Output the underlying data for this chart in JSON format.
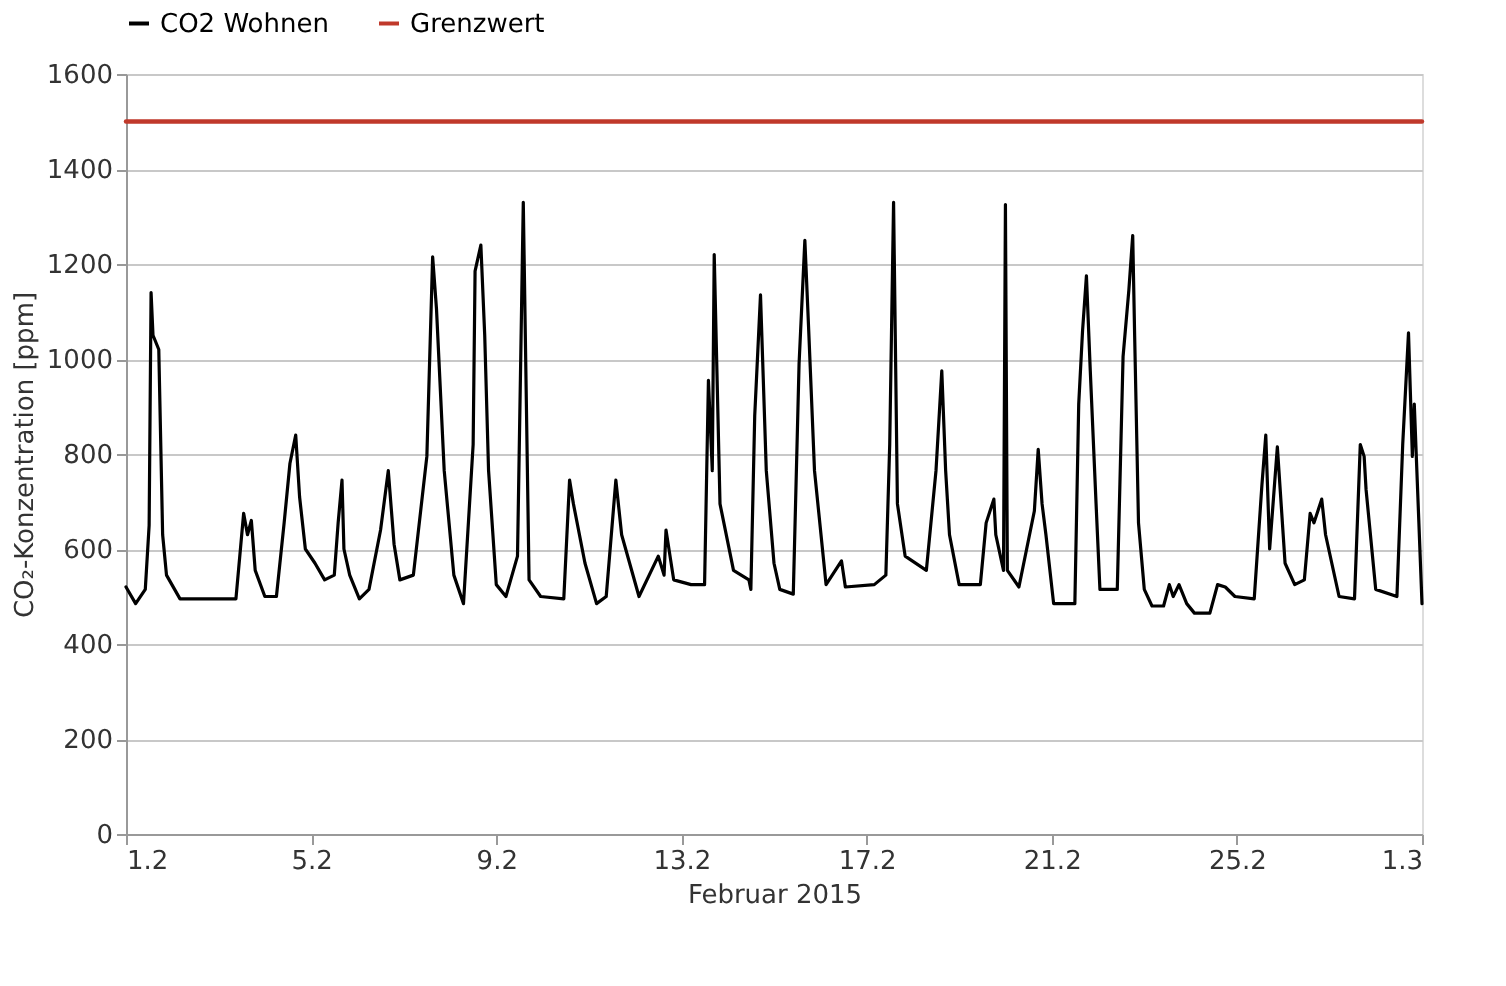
{
  "chart_data": {
    "type": "line",
    "xlabel": "Februar 2015",
    "ylabel": "CO₂-Konzentration [ppm]",
    "xlim": [
      "2015-02-01",
      "2015-03-01"
    ],
    "xticks": [
      {
        "value": "2015-02-01",
        "label": "1.2"
      },
      {
        "value": "2015-02-05",
        "label": "5.2"
      },
      {
        "value": "2015-02-09",
        "label": "9.2"
      },
      {
        "value": "2015-02-13",
        "label": "13.2"
      },
      {
        "value": "2015-02-17",
        "label": "17.2"
      },
      {
        "value": "2015-02-21",
        "label": "21.2"
      },
      {
        "value": "2015-02-25",
        "label": "25.2"
      },
      {
        "value": "2015-03-01",
        "label": "1.3"
      }
    ],
    "ylim": [
      0,
      1600
    ],
    "yticks": [
      0,
      200,
      400,
      600,
      800,
      1000,
      1200,
      1400,
      1600
    ],
    "grid": "y",
    "legend": "top",
    "marker": "none",
    "line_style": "solid",
    "series": [
      {
        "name": "CO2 Wohnen",
        "color": "#000000",
        "x": [
          "2015-02-01T00:00",
          "2015-02-01T05:00",
          "2015-02-01T10:00",
          "2015-02-01T12:00",
          "2015-02-01T13:00",
          "2015-02-01T14:00",
          "2015-02-01T17:00",
          "2015-02-01T19:00",
          "2015-02-01T21:00",
          "2015-02-02T04:00",
          "2015-02-03T09:00",
          "2015-02-03T13:00",
          "2015-02-03T15:00",
          "2015-02-03T17:00",
          "2015-02-03T19:00",
          "2015-02-04T00:00",
          "2015-02-04T06:00",
          "2015-02-04T10:00",
          "2015-02-04T13:00",
          "2015-02-04T16:00",
          "2015-02-04T18:00",
          "2015-02-04T21:00",
          "2015-02-05T02:00",
          "2015-02-05T07:00",
          "2015-02-05T12:00",
          "2015-02-05T14:00",
          "2015-02-05T16:00",
          "2015-02-05T17:00",
          "2015-02-05T20:00",
          "2015-02-06T01:00",
          "2015-02-06T06:00",
          "2015-02-06T12:00",
          "2015-02-06T16:00",
          "2015-02-06T19:00",
          "2015-02-06T22:00",
          "2015-02-07T05:00",
          "2015-02-07T12:00",
          "2015-02-07T15:00",
          "2015-02-07T17:00",
          "2015-02-07T21:00",
          "2015-02-08T02:00",
          "2015-02-08T07:00",
          "2015-02-08T12:00",
          "2015-02-08T13:00",
          "2015-02-08T16:00",
          "2015-02-08T18:00",
          "2015-02-08T20:00",
          "2015-02-09T00:00",
          "2015-02-09T05:00",
          "2015-02-09T11:00",
          "2015-02-09T14:00",
          "2015-02-09T17:00",
          "2015-02-09T23:00",
          "2015-02-10T11:00",
          "2015-02-10T14:00",
          "2015-02-10T16:00",
          "2015-02-10T22:00",
          "2015-02-11T04:00",
          "2015-02-11T09:00",
          "2015-02-11T14:00",
          "2015-02-11T17:00",
          "2015-02-12T02:00",
          "2015-02-12T12:00",
          "2015-02-12T15:00",
          "2015-02-12T16:00",
          "2015-02-12T20:00",
          "2015-02-13T05:00",
          "2015-02-13T12:00",
          "2015-02-13T14:00",
          "2015-02-13T16:00",
          "2015-02-13T17:00",
          "2015-02-13T20:00",
          "2015-02-14T03:00",
          "2015-02-14T11:00",
          "2015-02-14T12:00",
          "2015-02-14T14:00",
          "2015-02-14T17:00",
          "2015-02-14T20:00",
          "2015-02-15T00:00",
          "2015-02-15T03:00",
          "2015-02-15T10:00",
          "2015-02-15T13:00",
          "2015-02-15T16:00",
          "2015-02-15T18:00",
          "2015-02-15T21:00",
          "2015-02-16T03:00",
          "2015-02-16T11:00",
          "2015-02-16T13:00",
          "2015-02-17T04:00",
          "2015-02-17T10:00",
          "2015-02-17T12:00",
          "2015-02-17T14:00",
          "2015-02-17T16:00",
          "2015-02-17T20:00",
          "2015-02-18T07:00",
          "2015-02-18T12:00",
          "2015-02-18T15:00",
          "2015-02-18T17:00",
          "2015-02-18T19:00",
          "2015-02-19T00:00",
          "2015-02-19T11:00",
          "2015-02-19T14:00",
          "2015-02-19T18:00",
          "2015-02-19T19:00",
          "2015-02-19T23:00",
          "2015-02-20T00:00",
          "2015-02-20T01:00",
          "2015-02-20T07:00",
          "2015-02-20T15:00",
          "2015-02-20T17:00",
          "2015-02-20T19:00",
          "2015-02-20T21:00",
          "2015-02-21T01:00",
          "2015-02-21T12:00",
          "2015-02-21T14:00",
          "2015-02-21T16:00",
          "2015-02-21T18:00",
          "2015-02-21T20:00",
          "2015-02-21T23:00",
          "2015-02-22T01:00",
          "2015-02-22T10:00",
          "2015-02-22T13:00",
          "2015-02-22T16:00",
          "2015-02-22T18:00",
          "2015-02-22T19:00",
          "2015-02-22T21:00",
          "2015-02-23T00:00",
          "2015-02-23T04:00",
          "2015-02-23T10:00",
          "2015-02-23T13:00",
          "2015-02-23T15:00",
          "2015-02-23T18:00",
          "2015-02-23T22:00",
          "2015-02-24T02:00",
          "2015-02-24T10:00",
          "2015-02-24T14:00",
          "2015-02-24T18:00",
          "2015-02-24T23:00",
          "2015-02-25T09:00",
          "2015-02-25T13:00",
          "2015-02-25T15:00",
          "2015-02-25T17:00",
          "2015-02-25T21:00",
          "2015-02-26T01:00",
          "2015-02-26T06:00",
          "2015-02-26T11:00",
          "2015-02-26T14:00",
          "2015-02-26T16:00",
          "2015-02-26T20:00",
          "2015-02-26T22:00",
          "2015-02-27T05:00",
          "2015-02-27T13:00",
          "2015-02-27T16:00",
          "2015-02-27T18:00",
          "2015-02-27T19:00",
          "2015-02-28T00:00",
          "2015-02-28T11:00",
          "2015-02-28T14:00",
          "2015-02-28T17:00",
          "2015-02-28T19:00",
          "2015-02-28T20:00",
          "2015-03-01T00:00"
        ],
        "values": [
          520,
          485,
          515,
          650,
          1140,
          1050,
          1020,
          630,
          545,
          495,
          495,
          675,
          630,
          660,
          555,
          500,
          500,
          655,
          780,
          840,
          710,
          600,
          570,
          535,
          545,
          655,
          745,
          600,
          545,
          495,
          515,
          640,
          765,
          610,
          535,
          545,
          795,
          1215,
          1105,
          765,
          545,
          485,
          820,
          1185,
          1240,
          1050,
          765,
          525,
          500,
          585,
          1330,
          535,
          500,
          495,
          745,
          695,
          570,
          485,
          500,
          745,
          630,
          500,
          585,
          545,
          640,
          535,
          525,
          525,
          955,
          765,
          1220,
          695,
          555,
          535,
          515,
          880,
          1135,
          765,
          570,
          515,
          505,
          990,
          1250,
          1060,
          765,
          525,
          575,
          520,
          525,
          545,
          820,
          1330,
          695,
          585,
          555,
          765,
          975,
          765,
          630,
          525,
          525,
          655,
          705,
          630,
          555,
          1325,
          555,
          520,
          680,
          810,
          695,
          630,
          485,
          485,
          905,
          1060,
          1175,
          975,
          695,
          515,
          515,
          1005,
          1145,
          1260,
          1050,
          655,
          515,
          480,
          480,
          525,
          500,
          525,
          485,
          465,
          465,
          525,
          520,
          500,
          495,
          735,
          840,
          600,
          815,
          570,
          525,
          535,
          675,
          655,
          705,
          630,
          500,
          495,
          820,
          795,
          725,
          515,
          500,
          820,
          1055,
          795,
          905,
          485
        ]
      },
      {
        "name": "Grenzwert",
        "color": "#c0392b",
        "x": [
          "2015-02-01T00:00",
          "2015-03-01T00:00"
        ],
        "values": [
          1500,
          1500
        ]
      }
    ]
  }
}
